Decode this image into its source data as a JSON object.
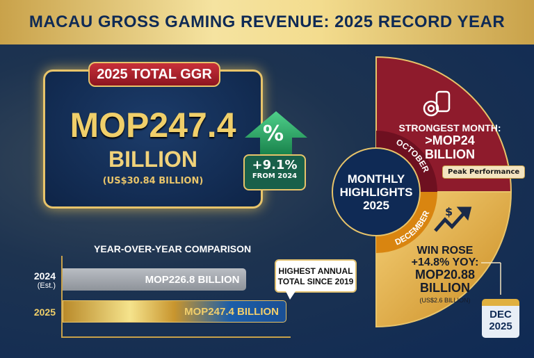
{
  "title": "MACAU GROSS GAMING REVENUE: 2025 RECORD YEAR",
  "total": {
    "tag": "2025 TOTAL GGR",
    "value": "MOP247.4",
    "unit": "BILLION",
    "usd": "(US$30.84 BILLION)"
  },
  "growth": {
    "icon": "percent-up-arrow-icon",
    "percent_sign": "%",
    "value": "+9.1%",
    "label": "FROM 2024"
  },
  "comparison": {
    "title": "YEAR-OVER-YEAR COMPARISON",
    "rows": [
      {
        "year": "2024",
        "note": "(Est.)",
        "label": "MOP226.8 BILLION",
        "value": 226.8
      },
      {
        "year": "2025",
        "label": "MOP247.4 BILLION",
        "value": 247.4
      }
    ],
    "callout": "HIGHEST ANNUAL TOTAL SINCE 2019"
  },
  "highlights": {
    "center": [
      "MONTHLY",
      "HIGHLIGHTS",
      "2025"
    ],
    "october": {
      "month": "OCTOBER",
      "line1": "STRONGEST MONTH:",
      "line2": ">MOP24",
      "line3": "BILLION",
      "badge": "Peak Performance",
      "icon": "casino-chips-icon",
      "color": "#8e1b2c"
    },
    "december": {
      "month": "DECEMBER",
      "line1": "WIN ROSE",
      "line2": "+14.8% YOY:",
      "line3": "MOP20.88",
      "line4": "BILLION",
      "usd": "(US$2.6 BILLION)",
      "icon": "dollar-trend-up-icon",
      "color": "#e0a030"
    },
    "calendar": {
      "month": "DEC",
      "year": "2025"
    }
  }
}
